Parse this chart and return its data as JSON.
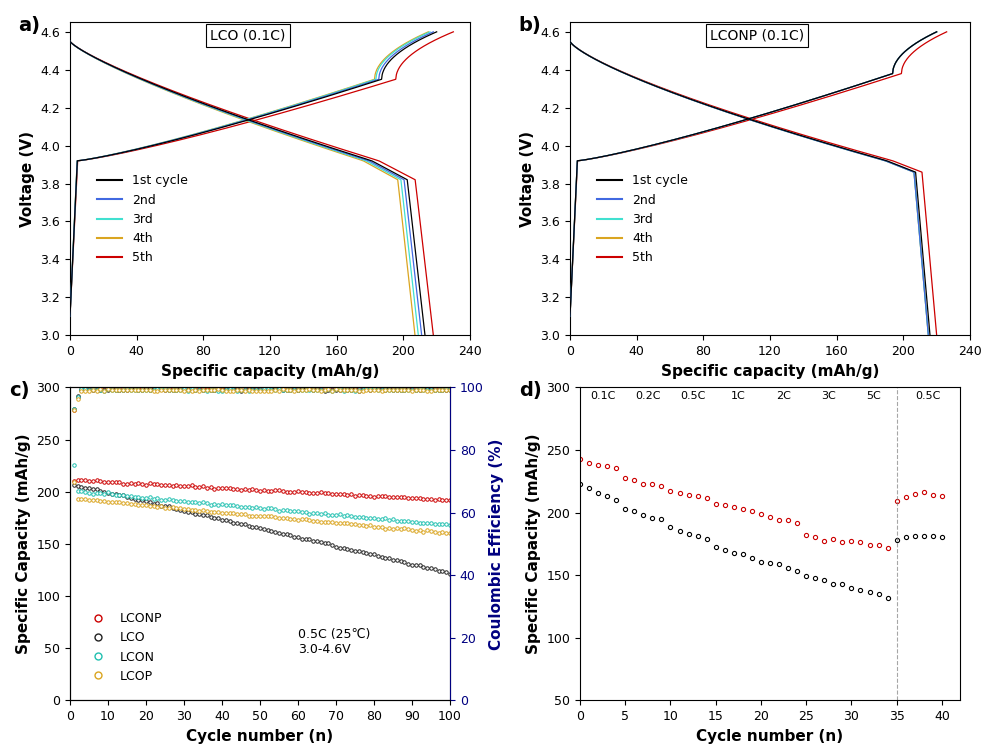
{
  "panel_a": {
    "title": "LCO (0.1C)",
    "xlabel": "Specific capacity (mAh/g)",
    "ylabel": "Voltage (V)",
    "xlim": [
      0,
      240
    ],
    "ylim": [
      3.0,
      4.65
    ],
    "xticks": [
      0,
      40,
      80,
      120,
      160,
      200,
      240
    ],
    "yticks": [
      3.0,
      3.2,
      3.4,
      3.6,
      3.8,
      4.0,
      4.2,
      4.4,
      4.6
    ],
    "cycles": [
      "1st cycle",
      "2nd",
      "3rd",
      "4th",
      "5th"
    ],
    "colors": [
      "#000000",
      "#4169E1",
      "#40E0D0",
      "#DAA520",
      "#CC0000"
    ]
  },
  "panel_b": {
    "title": "LCONP (0.1C)",
    "xlabel": "Specific capacity (mAh/g)",
    "ylabel": "Voltage (V)",
    "xlim": [
      0,
      240
    ],
    "ylim": [
      3.0,
      4.65
    ],
    "xticks": [
      0,
      40,
      80,
      120,
      160,
      200,
      240
    ],
    "yticks": [
      3.0,
      3.2,
      3.4,
      3.6,
      3.8,
      4.0,
      4.2,
      4.4,
      4.6
    ],
    "cycles": [
      "1st cycle",
      "2nd",
      "3rd",
      "4th",
      "5th"
    ],
    "colors": [
      "#000000",
      "#4169E1",
      "#40E0D0",
      "#DAA520",
      "#CC0000"
    ]
  },
  "panel_c": {
    "xlabel": "Cycle number (n)",
    "ylabel_left": "Specific Capacity (mAh/g)",
    "ylabel_right": "Coulombic Efficiency (%)",
    "xlim": [
      0,
      100
    ],
    "ylim_left": [
      0,
      300
    ],
    "ylim_right": [
      0,
      100
    ],
    "xticks": [
      0,
      10,
      20,
      30,
      40,
      50,
      60,
      70,
      80,
      90,
      100
    ],
    "yticks_left": [
      0,
      50,
      100,
      150,
      200,
      250,
      300
    ],
    "yticks_right": [
      0,
      20,
      40,
      60,
      80,
      100
    ],
    "annotation": "0.5C (25℃)\n3.0-4.6V"
  },
  "panel_d": {
    "xlabel": "Cycle number (n)",
    "ylabel": "Specific Capacity (mAh/g)",
    "xlim": [
      0,
      42
    ],
    "ylim": [
      50,
      300
    ],
    "yticks": [
      50,
      100,
      150,
      200,
      250,
      300
    ],
    "rate_labels": [
      "0.1C",
      "0.2C",
      "0.5C",
      "1C",
      "2C",
      "3C",
      "5C",
      "0.5C"
    ],
    "rate_positions": [
      2.5,
      7.5,
      12.5,
      17.5,
      22.5,
      27.5,
      32.5,
      38.5
    ],
    "vline": 35,
    "lconp_color": "#CC0000",
    "lco_color": "#000000"
  },
  "label_fontsize": 11,
  "tick_fontsize": 9,
  "legend_fontsize": 9,
  "panel_label_fontsize": 14
}
